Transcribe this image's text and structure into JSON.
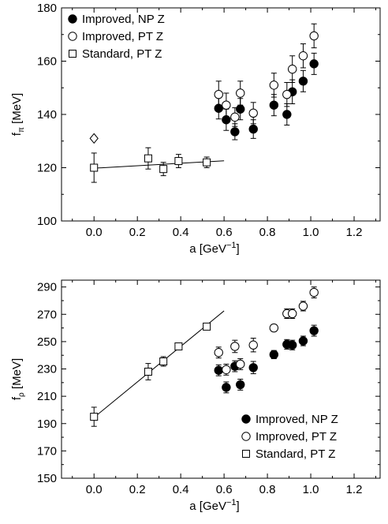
{
  "chart_data": [
    {
      "type": "scatter",
      "xlabel": "a [GeV",
      "xlabel_sup": "−1",
      "xlabel_end": "]",
      "ylabel": "f",
      "ylabel_sub": "π",
      "ylabel_unit": " [MeV]",
      "xlim": [
        -0.15,
        1.32
      ],
      "ylim": [
        100,
        180
      ],
      "xticks": [
        "0.0",
        "0.2",
        "0.4",
        "0.6",
        "0.8",
        "1.0",
        "1.2"
      ],
      "yticks": [
        "100",
        "120",
        "140",
        "160",
        "180"
      ],
      "legend_position": "top-left",
      "series": [
        {
          "name": "Improved, NP Z",
          "marker": "filled-circle",
          "points": [
            {
              "x": 0.575,
              "y": 142.3,
              "err": 4
            },
            {
              "x": 0.61,
              "y": 138.0,
              "err": 4
            },
            {
              "x": 0.65,
              "y": 133.5,
              "err": 3
            },
            {
              "x": 0.675,
              "y": 142.0,
              "err": 4
            },
            {
              "x": 0.735,
              "y": 134.5,
              "err": 3.5
            },
            {
              "x": 0.83,
              "y": 143.5,
              "err": 4
            },
            {
              "x": 0.89,
              "y": 140.0,
              "err": 4
            },
            {
              "x": 0.915,
              "y": 148.5,
              "err": 4.5
            },
            {
              "x": 0.965,
              "y": 152.5,
              "err": 4
            },
            {
              "x": 1.015,
              "y": 159.0,
              "err": 4
            }
          ]
        },
        {
          "name": "Improved, PT Z",
          "marker": "open-circle",
          "points": [
            {
              "x": 0.575,
              "y": 147.5,
              "err": 5
            },
            {
              "x": 0.61,
              "y": 143.5,
              "err": 4.5
            },
            {
              "x": 0.65,
              "y": 139.0,
              "err": 3.5
            },
            {
              "x": 0.675,
              "y": 148.0,
              "err": 4.5
            },
            {
              "x": 0.735,
              "y": 140.5,
              "err": 4
            },
            {
              "x": 0.83,
              "y": 151.0,
              "err": 4.5
            },
            {
              "x": 0.89,
              "y": 147.5,
              "err": 4.5
            },
            {
              "x": 0.915,
              "y": 157.0,
              "err": 5
            },
            {
              "x": 0.965,
              "y": 162.0,
              "err": 4.5
            },
            {
              "x": 1.015,
              "y": 169.5,
              "err": 4.5
            }
          ]
        },
        {
          "name": "Standard, PT Z",
          "marker": "open-square",
          "points": [
            {
              "x": 0.0,
              "y": 120.0,
              "err": 5.5
            },
            {
              "x": 0.25,
              "y": 123.5,
              "err": 4
            },
            {
              "x": 0.32,
              "y": 119.5,
              "err": 2.5
            },
            {
              "x": 0.39,
              "y": 122.5,
              "err": 2.5
            },
            {
              "x": 0.52,
              "y": 122.0,
              "err": 2
            }
          ]
        },
        {
          "marker": "open-diamond",
          "points": [
            {
              "x": 0.0,
              "y": 131.0,
              "err": 0
            }
          ]
        }
      ],
      "fit_line": {
        "x": [
          0.0,
          0.6
        ],
        "y": [
          119.8,
          122.6
        ]
      }
    },
    {
      "type": "scatter",
      "xlabel": "a [GeV",
      "xlabel_sup": "−1",
      "xlabel_end": "]",
      "ylabel": "f",
      "ylabel_sub": "ρ",
      "ylabel_unit": " [MeV]",
      "xlim": [
        -0.15,
        1.32
      ],
      "ylim": [
        150,
        295
      ],
      "xticks": [
        "0.0",
        "0.2",
        "0.4",
        "0.6",
        "0.8",
        "1.0",
        "1.2"
      ],
      "yticks": [
        "150",
        "170",
        "190",
        "210",
        "230",
        "250",
        "270",
        "290"
      ],
      "legend_position": "bottom-right",
      "series": [
        {
          "name": "Improved, NP Z",
          "marker": "filled-circle",
          "points": [
            {
              "x": 0.575,
              "y": 229.0,
              "err": 4
            },
            {
              "x": 0.61,
              "y": 216.5,
              "err": 4
            },
            {
              "x": 0.65,
              "y": 232.0,
              "err": 4
            },
            {
              "x": 0.675,
              "y": 218.5,
              "err": 4
            },
            {
              "x": 0.735,
              "y": 231.0,
              "err": 4.5
            },
            {
              "x": 0.83,
              "y": 240.5,
              "err": 3
            },
            {
              "x": 0.89,
              "y": 248.0,
              "err": 3.5
            },
            {
              "x": 0.915,
              "y": 247.5,
              "err": 3.5
            },
            {
              "x": 0.965,
              "y": 250.5,
              "err": 3.5
            },
            {
              "x": 1.015,
              "y": 258.0,
              "err": 4
            }
          ]
        },
        {
          "name": "Improved, PT Z",
          "marker": "open-circle",
          "points": [
            {
              "x": 0.575,
              "y": 242.0,
              "err": 4
            },
            {
              "x": 0.61,
              "y": 229.5,
              "err": 4
            },
            {
              "x": 0.65,
              "y": 246.5,
              "err": 4.5
            },
            {
              "x": 0.675,
              "y": 233.5,
              "err": 4
            },
            {
              "x": 0.735,
              "y": 247.5,
              "err": 5
            },
            {
              "x": 0.83,
              "y": 260.0,
              "err": 2.5
            },
            {
              "x": 0.89,
              "y": 270.5,
              "err": 3.5
            },
            {
              "x": 0.915,
              "y": 270.5,
              "err": 3.5
            },
            {
              "x": 0.965,
              "y": 276.0,
              "err": 3.5
            },
            {
              "x": 1.015,
              "y": 286.0,
              "err": 4
            }
          ]
        },
        {
          "name": "Standard, PT Z",
          "marker": "open-square",
          "points": [
            {
              "x": 0.0,
              "y": 195.0,
              "err": 7
            },
            {
              "x": 0.25,
              "y": 228.0,
              "err": 6
            },
            {
              "x": 0.32,
              "y": 235.5,
              "err": 3.5
            },
            {
              "x": 0.39,
              "y": 246.5,
              "err": 2
            },
            {
              "x": 0.52,
              "y": 261.0,
              "err": 2
            }
          ]
        }
      ],
      "fit_line": {
        "x": [
          0.0,
          0.6
        ],
        "y": [
          194.5,
          272.5
        ]
      }
    }
  ]
}
